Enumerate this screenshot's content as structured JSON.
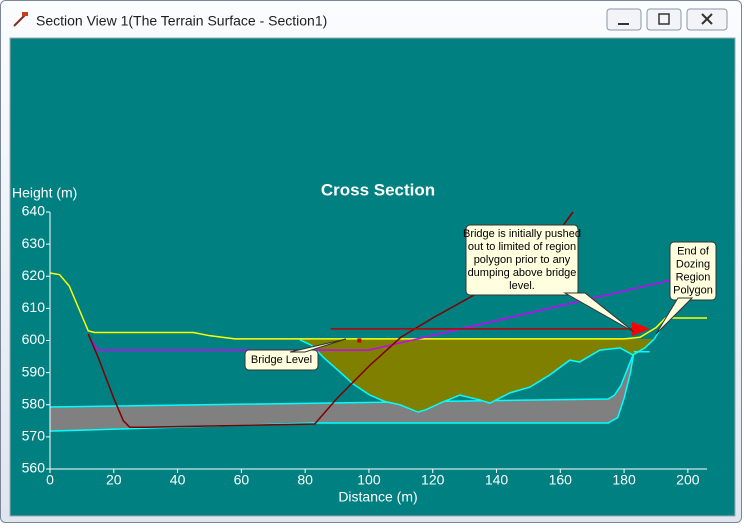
{
  "window": {
    "title": "Section View 1(The Terrain Surface - Section1)"
  },
  "chart_data": {
    "type": "line",
    "title": "Cross Section",
    "y_label": "Height (m)",
    "x_label": "Distance (m)",
    "xlim": [
      0,
      206
    ],
    "ylim": [
      560,
      640
    ],
    "xticks": [
      0,
      20,
      40,
      60,
      80,
      100,
      120,
      140,
      160,
      180,
      200
    ],
    "yticks": [
      560,
      570,
      580,
      590,
      600,
      610,
      620,
      630,
      640
    ],
    "series": [
      {
        "color": "#00ffff",
        "fill": "#808080",
        "x": [
          0,
          175,
          177,
          179,
          181,
          183
        ],
        "values": [
          579.3,
          581.8,
          583,
          586,
          591,
          596
        ],
        "x_lower": [
          0,
          82,
          175,
          178,
          180,
          182,
          183
        ],
        "lower": [
          571.8,
          574.3,
          574.3,
          576,
          582,
          590,
          596
        ]
      },
      {
        "color": "#00ffff",
        "fill": "#808000",
        "x": [
          78.4,
          82,
          86,
          90.9,
          95,
          100.3,
          105,
          109.7,
          115.4,
          118,
          122.3,
          128.5,
          134.8,
          137.9,
          144.2,
          150.5,
          156.7,
          163,
          166,
          172.4,
          178.7,
          182.8,
          186.5,
          189.5
        ],
        "values": [
          600.2,
          598.5,
          594.5,
          590.2,
          586.5,
          583,
          581,
          580,
          577.7,
          578.5,
          580.5,
          583,
          581.5,
          580.5,
          583.7,
          585.5,
          589.3,
          593.9,
          593.3,
          597,
          597.7,
          595.5,
          597.7,
          600.5
        ]
      },
      {
        "color": "#00ffff",
        "x": [
          189.5,
          191.2,
          193,
          194.4
        ],
        "values": [
          600.5,
          603.3,
          605.5,
          606.4
        ]
      },
      {
        "color": "#00ffff",
        "x": [
          183,
          188
        ],
        "values": [
          596.5,
          596.5
        ]
      },
      {
        "color": "#ffff00",
        "x": [
          0,
          3,
          6,
          9,
          12,
          14,
          45,
          50,
          58,
          80,
          140,
          180,
          185,
          190,
          193,
          206
        ],
        "values": [
          621,
          620.5,
          617,
          610,
          603,
          602.5,
          602.5,
          601.5,
          600.5,
          600.5,
          600.5,
          600.5,
          601,
          604,
          607,
          607
        ]
      },
      {
        "color": "#cc00ff",
        "x": [
          13,
          15,
          100,
          200
        ],
        "values": [
          600,
          597,
          597,
          620
        ]
      },
      {
        "color": "#800000",
        "x": [
          12,
          15,
          20,
          23,
          25,
          30,
          83,
          90,
          100,
          110,
          120,
          140,
          158,
          164
        ],
        "values": [
          602,
          595,
          582,
          575,
          573,
          573,
          574,
          582,
          592,
          601,
          607,
          618,
          632,
          640
        ]
      },
      {
        "color": "#c00000",
        "arrow": true,
        "x": [
          88,
          185
        ],
        "values": [
          603.6,
          603.6
        ]
      }
    ],
    "point": {
      "x": 97,
      "y": 600,
      "color": "#c00000"
    },
    "annotations": [
      {
        "lines": [
          "Bridge Level"
        ]
      },
      {
        "lines": [
          "Bridge is initially pushed",
          "out to limited of region",
          "polygon prior to any",
          "dumping above bridge",
          "level."
        ]
      },
      {
        "lines": [
          "End of",
          "Dozing",
          "Region",
          "Polygon"
        ]
      }
    ]
  }
}
